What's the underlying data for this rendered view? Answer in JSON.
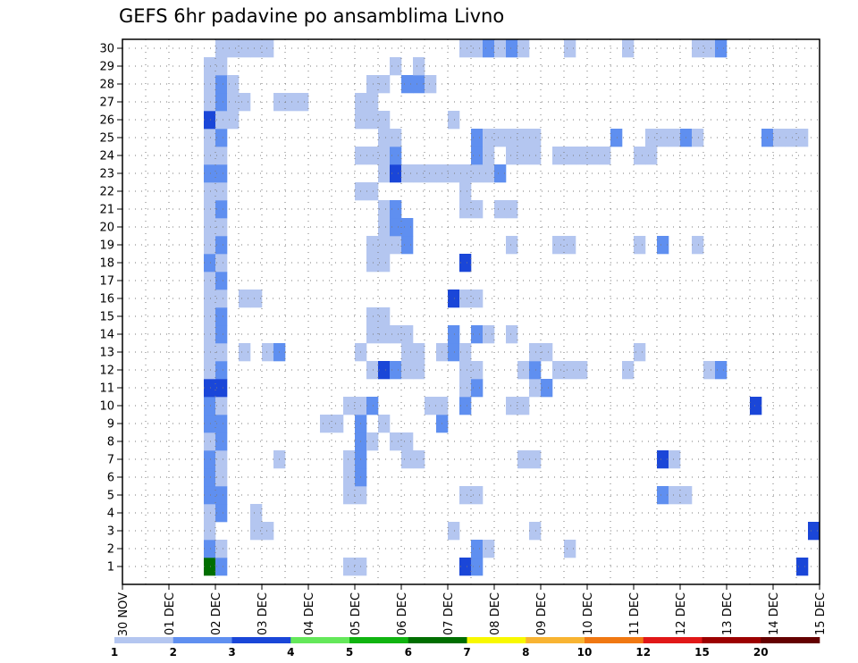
{
  "chart_data": {
    "type": "heatmap",
    "title": "GEFS 6hr padavine po ansamblima Livno",
    "y_categories": [
      "1",
      "2",
      "3",
      "4",
      "5",
      "6",
      "7",
      "8",
      "9",
      "10",
      "11",
      "12",
      "13",
      "14",
      "15",
      "16",
      "17",
      "18",
      "19",
      "20",
      "21",
      "22",
      "23",
      "24",
      "25",
      "26",
      "27",
      "28",
      "29",
      "30"
    ],
    "x_tick_labels": [
      "30 NOV",
      "01 DEC",
      "02 DEC",
      "03 DEC",
      "04 DEC",
      "05 DEC",
      "06 DEC",
      "07 DEC",
      "08 DEC",
      "09 DEC",
      "10 DEC",
      "11 DEC",
      "12 DEC",
      "13 DEC",
      "14 DEC",
      "15 DEC"
    ],
    "x_steps": 60,
    "steps_per_day": 4,
    "grid": true,
    "legend": {
      "labels": [
        "1",
        "2",
        "3",
        "4",
        "5",
        "6",
        "7",
        "8",
        "10",
        "12",
        "15",
        "20"
      ],
      "colors": [
        "#b4c6f0",
        "#5f8ff0",
        "#1a46d8",
        "#64e85a",
        "#10b410",
        "#006e00",
        "#f8f800",
        "#f8b432",
        "#f07812",
        "#e11818",
        "#9c0000",
        "#640000"
      ]
    },
    "data": [
      [
        1,
        [
          [
            7,
            6
          ],
          [
            8,
            2
          ],
          [
            19,
            1
          ],
          [
            20,
            1
          ],
          [
            29,
            3
          ],
          [
            30,
            2
          ],
          [
            58,
            3
          ]
        ]
      ],
      [
        2,
        [
          [
            7,
            2
          ],
          [
            8,
            1
          ],
          [
            30,
            2
          ],
          [
            31,
            1
          ],
          [
            38,
            1
          ]
        ]
      ],
      [
        3,
        [
          [
            7,
            1
          ],
          [
            11,
            1
          ],
          [
            12,
            1
          ],
          [
            28,
            1
          ],
          [
            35,
            1
          ],
          [
            59,
            3
          ]
        ]
      ],
      [
        4,
        [
          [
            7,
            1
          ],
          [
            8,
            2
          ],
          [
            11,
            1
          ]
        ]
      ],
      [
        5,
        [
          [
            7,
            2
          ],
          [
            8,
            2
          ],
          [
            19,
            1
          ],
          [
            20,
            1
          ],
          [
            29,
            1
          ],
          [
            30,
            1
          ],
          [
            46,
            2
          ],
          [
            47,
            1
          ],
          [
            48,
            1
          ]
        ]
      ],
      [
        6,
        [
          [
            7,
            2
          ],
          [
            8,
            1
          ],
          [
            19,
            1
          ],
          [
            20,
            2
          ]
        ]
      ],
      [
        7,
        [
          [
            7,
            2
          ],
          [
            8,
            1
          ],
          [
            13,
            1
          ],
          [
            19,
            1
          ],
          [
            20,
            2
          ],
          [
            24,
            1
          ],
          [
            25,
            1
          ],
          [
            34,
            1
          ],
          [
            35,
            1
          ],
          [
            46,
            3
          ],
          [
            47,
            1
          ]
        ]
      ],
      [
        8,
        [
          [
            7,
            1
          ],
          [
            8,
            2
          ],
          [
            20,
            2
          ],
          [
            21,
            1
          ],
          [
            23,
            1
          ],
          [
            24,
            1
          ]
        ]
      ],
      [
        9,
        [
          [
            7,
            2
          ],
          [
            8,
            2
          ],
          [
            17,
            1
          ],
          [
            18,
            1
          ],
          [
            20,
            2
          ],
          [
            22,
            1
          ],
          [
            27,
            2
          ]
        ]
      ],
      [
        10,
        [
          [
            7,
            2
          ],
          [
            8,
            1
          ],
          [
            19,
            1
          ],
          [
            20,
            1
          ],
          [
            21,
            2
          ],
          [
            26,
            1
          ],
          [
            27,
            1
          ],
          [
            29,
            2
          ],
          [
            33,
            1
          ],
          [
            34,
            1
          ],
          [
            54,
            3
          ]
        ]
      ],
      [
        11,
        [
          [
            7,
            3
          ],
          [
            8,
            3
          ],
          [
            29,
            1
          ],
          [
            30,
            2
          ],
          [
            35,
            1
          ],
          [
            36,
            2
          ]
        ]
      ],
      [
        12,
        [
          [
            7,
            1
          ],
          [
            8,
            2
          ],
          [
            21,
            1
          ],
          [
            22,
            3
          ],
          [
            23,
            2
          ],
          [
            24,
            1
          ],
          [
            25,
            1
          ],
          [
            29,
            1
          ],
          [
            30,
            1
          ],
          [
            34,
            1
          ],
          [
            35,
            2
          ],
          [
            37,
            1
          ],
          [
            38,
            1
          ],
          [
            39,
            1
          ],
          [
            43,
            1
          ],
          [
            50,
            1
          ],
          [
            51,
            2
          ]
        ]
      ],
      [
        13,
        [
          [
            7,
            1
          ],
          [
            8,
            1
          ],
          [
            10,
            1
          ],
          [
            12,
            1
          ],
          [
            13,
            2
          ],
          [
            20,
            1
          ],
          [
            24,
            1
          ],
          [
            25,
            1
          ],
          [
            27,
            1
          ],
          [
            28,
            2
          ],
          [
            29,
            1
          ],
          [
            35,
            1
          ],
          [
            36,
            1
          ],
          [
            44,
            1
          ]
        ]
      ],
      [
        14,
        [
          [
            7,
            1
          ],
          [
            8,
            2
          ],
          [
            21,
            1
          ],
          [
            22,
            1
          ],
          [
            23,
            1
          ],
          [
            24,
            1
          ],
          [
            28,
            2
          ],
          [
            30,
            2
          ],
          [
            31,
            1
          ],
          [
            33,
            1
          ]
        ]
      ],
      [
        15,
        [
          [
            7,
            1
          ],
          [
            8,
            2
          ],
          [
            21,
            1
          ],
          [
            22,
            1
          ]
        ]
      ],
      [
        16,
        [
          [
            7,
            1
          ],
          [
            8,
            1
          ],
          [
            10,
            1
          ],
          [
            11,
            1
          ],
          [
            28,
            3
          ],
          [
            29,
            1
          ],
          [
            30,
            1
          ]
        ]
      ],
      [
        17,
        [
          [
            7,
            1
          ],
          [
            8,
            2
          ]
        ]
      ],
      [
        18,
        [
          [
            7,
            2
          ],
          [
            8,
            1
          ],
          [
            21,
            1
          ],
          [
            22,
            1
          ],
          [
            29,
            3
          ]
        ]
      ],
      [
        19,
        [
          [
            7,
            1
          ],
          [
            8,
            2
          ],
          [
            21,
            1
          ],
          [
            22,
            1
          ],
          [
            23,
            1
          ],
          [
            24,
            2
          ],
          [
            33,
            1
          ],
          [
            37,
            1
          ],
          [
            38,
            1
          ],
          [
            44,
            1
          ],
          [
            46,
            2
          ],
          [
            49,
            1
          ]
        ]
      ],
      [
        20,
        [
          [
            7,
            1
          ],
          [
            8,
            1
          ],
          [
            22,
            1
          ],
          [
            23,
            2
          ],
          [
            24,
            2
          ]
        ]
      ],
      [
        21,
        [
          [
            7,
            1
          ],
          [
            8,
            2
          ],
          [
            22,
            1
          ],
          [
            23,
            2
          ],
          [
            29,
            1
          ],
          [
            30,
            1
          ],
          [
            32,
            1
          ],
          [
            33,
            1
          ]
        ]
      ],
      [
        22,
        [
          [
            7,
            1
          ],
          [
            8,
            1
          ],
          [
            20,
            1
          ],
          [
            21,
            1
          ],
          [
            29,
            1
          ]
        ]
      ],
      [
        23,
        [
          [
            7,
            2
          ],
          [
            8,
            2
          ],
          [
            22,
            1
          ],
          [
            23,
            3
          ],
          [
            24,
            1
          ],
          [
            25,
            1
          ],
          [
            26,
            1
          ],
          [
            27,
            1
          ],
          [
            28,
            1
          ],
          [
            29,
            1
          ],
          [
            30,
            1
          ],
          [
            31,
            1
          ],
          [
            32,
            2
          ]
        ]
      ],
      [
        24,
        [
          [
            7,
            1
          ],
          [
            8,
            1
          ],
          [
            20,
            1
          ],
          [
            21,
            1
          ],
          [
            22,
            1
          ],
          [
            23,
            2
          ],
          [
            30,
            2
          ],
          [
            31,
            1
          ],
          [
            33,
            1
          ],
          [
            34,
            1
          ],
          [
            35,
            1
          ],
          [
            37,
            1
          ],
          [
            38,
            1
          ],
          [
            39,
            1
          ],
          [
            40,
            1
          ],
          [
            41,
            1
          ],
          [
            44,
            1
          ],
          [
            45,
            1
          ]
        ]
      ],
      [
        25,
        [
          [
            7,
            1
          ],
          [
            8,
            2
          ],
          [
            22,
            1
          ],
          [
            23,
            1
          ],
          [
            30,
            2
          ],
          [
            31,
            1
          ],
          [
            32,
            1
          ],
          [
            33,
            1
          ],
          [
            34,
            1
          ],
          [
            35,
            1
          ],
          [
            42,
            2
          ],
          [
            45,
            1
          ],
          [
            46,
            1
          ],
          [
            47,
            1
          ],
          [
            48,
            2
          ],
          [
            49,
            1
          ],
          [
            55,
            2
          ],
          [
            56,
            1
          ],
          [
            57,
            1
          ],
          [
            58,
            1
          ]
        ]
      ],
      [
        26,
        [
          [
            7,
            3
          ],
          [
            8,
            1
          ],
          [
            9,
            1
          ],
          [
            20,
            1
          ],
          [
            21,
            1
          ],
          [
            22,
            1
          ],
          [
            28,
            1
          ]
        ]
      ],
      [
        27,
        [
          [
            7,
            1
          ],
          [
            8,
            2
          ],
          [
            9,
            1
          ],
          [
            10,
            1
          ],
          [
            13,
            1
          ],
          [
            14,
            1
          ],
          [
            15,
            1
          ],
          [
            20,
            1
          ],
          [
            21,
            1
          ]
        ]
      ],
      [
        28,
        [
          [
            7,
            1
          ],
          [
            8,
            2
          ],
          [
            9,
            1
          ],
          [
            21,
            1
          ],
          [
            22,
            1
          ],
          [
            24,
            2
          ],
          [
            25,
            2
          ],
          [
            26,
            1
          ]
        ]
      ],
      [
        29,
        [
          [
            7,
            1
          ],
          [
            8,
            1
          ],
          [
            23,
            1
          ],
          [
            25,
            1
          ]
        ]
      ],
      [
        30,
        [
          [
            8,
            1
          ],
          [
            9,
            1
          ],
          [
            10,
            1
          ],
          [
            11,
            1
          ],
          [
            12,
            1
          ],
          [
            29,
            1
          ],
          [
            30,
            1
          ],
          [
            31,
            2
          ],
          [
            32,
            1
          ],
          [
            33,
            2
          ],
          [
            34,
            1
          ],
          [
            38,
            1
          ],
          [
            43,
            1
          ],
          [
            49,
            1
          ],
          [
            50,
            1
          ],
          [
            51,
            2
          ]
        ]
      ]
    ]
  }
}
